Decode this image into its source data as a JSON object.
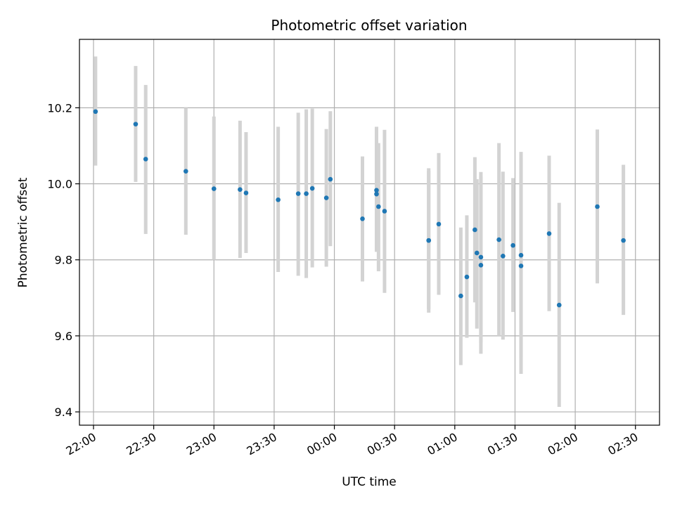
{
  "chart_data": {
    "type": "scatter",
    "title": "Photometric offset variation",
    "xlabel": "UTC time",
    "ylabel": "Photometric offset",
    "x_axis": {
      "kind": "time",
      "range": [
        "21:53",
        "02:42"
      ],
      "ticks": [
        "22:00",
        "22:30",
        "23:00",
        "23:30",
        "00:00",
        "00:30",
        "01:00",
        "01:30",
        "02:00",
        "02:30"
      ],
      "tick_label_rotation_deg": 30
    },
    "y_axis": {
      "range": [
        9.365,
        10.38
      ],
      "ticks": [
        9.4,
        9.6,
        9.8,
        10.0,
        10.2
      ],
      "tick_labels": [
        "9.4",
        "9.6",
        "9.8",
        "10.0",
        "10.2"
      ]
    },
    "grid": true,
    "point_color": "#1f77b4",
    "errorbar_color": "#d3d3d3",
    "points": [
      {
        "time": "22:01",
        "y": 10.19,
        "lo": 10.048,
        "hi": 10.335
      },
      {
        "time": "22:21",
        "y": 10.157,
        "lo": 10.005,
        "hi": 10.31
      },
      {
        "time": "22:26",
        "y": 10.065,
        "lo": 9.868,
        "hi": 10.26
      },
      {
        "time": "22:46",
        "y": 10.033,
        "lo": 9.866,
        "hi": 10.2
      },
      {
        "time": "23:00",
        "y": 9.987,
        "lo": 9.8,
        "hi": 10.177
      },
      {
        "time": "23:13",
        "y": 9.985,
        "lo": 9.805,
        "hi": 10.166
      },
      {
        "time": "23:16",
        "y": 9.976,
        "lo": 9.818,
        "hi": 10.136
      },
      {
        "time": "23:32",
        "y": 9.958,
        "lo": 9.768,
        "hi": 10.15
      },
      {
        "time": "23:42",
        "y": 9.974,
        "lo": 9.758,
        "hi": 10.187
      },
      {
        "time": "23:46",
        "y": 9.974,
        "lo": 9.752,
        "hi": 10.196
      },
      {
        "time": "23:49",
        "y": 9.988,
        "lo": 9.78,
        "hi": 10.198
      },
      {
        "time": "23:56",
        "y": 9.963,
        "lo": 9.782,
        "hi": 10.144
      },
      {
        "time": "23:58",
        "y": 10.012,
        "lo": 9.836,
        "hi": 10.191
      },
      {
        "time": "00:14",
        "y": 9.908,
        "lo": 9.743,
        "hi": 10.072
      },
      {
        "time": "00:21",
        "y": 9.983,
        "lo": 9.821,
        "hi": 10.15
      },
      {
        "time": "00:21",
        "y": 9.973,
        "lo": 9.84,
        "hi": 10.13
      },
      {
        "time": "00:22",
        "y": 9.94,
        "lo": 9.77,
        "hi": 10.107
      },
      {
        "time": "00:25",
        "y": 9.928,
        "lo": 9.713,
        "hi": 10.142
      },
      {
        "time": "00:47",
        "y": 9.851,
        "lo": 9.67,
        "hi": 10.034
      },
      {
        "time": "00:47",
        "y": 9.851,
        "lo": 9.661,
        "hi": 10.041
      },
      {
        "time": "00:52",
        "y": 9.894,
        "lo": 9.708,
        "hi": 10.081
      },
      {
        "time": "01:03",
        "y": 9.705,
        "lo": 9.523,
        "hi": 9.885
      },
      {
        "time": "01:06",
        "y": 9.755,
        "lo": 9.595,
        "hi": 9.917
      },
      {
        "time": "01:10",
        "y": 9.879,
        "lo": 9.688,
        "hi": 10.07
      },
      {
        "time": "01:11",
        "y": 9.818,
        "lo": 9.619,
        "hi": 10.012
      },
      {
        "time": "01:13",
        "y": 9.807,
        "lo": 9.582,
        "hi": 10.02
      },
      {
        "time": "01:13",
        "y": 9.786,
        "lo": 9.553,
        "hi": 10.031
      },
      {
        "time": "01:22",
        "y": 9.853,
        "lo": 9.6,
        "hi": 10.107
      },
      {
        "time": "01:24",
        "y": 9.81,
        "lo": 9.59,
        "hi": 10.032
      },
      {
        "time": "01:29",
        "y": 9.838,
        "lo": 9.663,
        "hi": 10.015
      },
      {
        "time": "01:33",
        "y": 9.812,
        "lo": 9.543,
        "hi": 10.084
      },
      {
        "time": "01:33",
        "y": 9.784,
        "lo": 9.5,
        "hi": 10.068
      },
      {
        "time": "01:47",
        "y": 9.869,
        "lo": 9.665,
        "hi": 10.074
      },
      {
        "time": "01:52",
        "y": 9.681,
        "lo": 9.413,
        "hi": 9.95
      },
      {
        "time": "02:11",
        "y": 9.94,
        "lo": 9.738,
        "hi": 10.143
      },
      {
        "time": "02:24",
        "y": 9.851,
        "lo": 9.655,
        "hi": 10.05
      }
    ]
  }
}
